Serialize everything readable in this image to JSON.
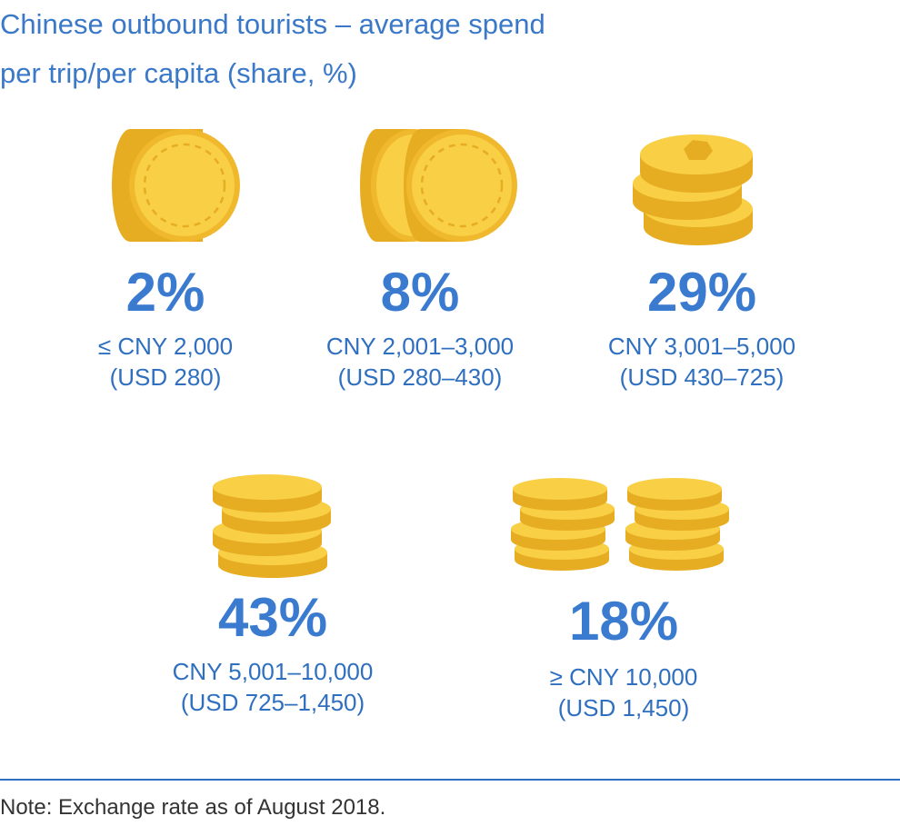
{
  "title_line1": "Chinese outbound tourists – average spend",
  "title_line2": "per trip/per capita (share, %)",
  "chart_data": {
    "type": "infographic",
    "title": "Chinese outbound tourists – average spend per trip/per capita (share, %)",
    "unit": "%",
    "items": [
      {
        "value": 2,
        "value_label": "2%",
        "range": "≤ CNY 2,000",
        "usd": "(USD 280)",
        "icon": "single-coin-icon"
      },
      {
        "value": 8,
        "value_label": "8%",
        "range": "CNY 2,001–3,000",
        "usd": "(USD 280–430)",
        "icon": "two-coins-icon"
      },
      {
        "value": 29,
        "value_label": "29%",
        "range": "CNY 3,001–5,000",
        "usd": "(USD 430–725)",
        "icon": "three-coin-stack-icon"
      },
      {
        "value": 43,
        "value_label": "43%",
        "range": "CNY 5,001–10,000",
        "usd": "(USD 725–1,450)",
        "icon": "four-coin-stack-icon"
      },
      {
        "value": 18,
        "value_label": "18%",
        "range": "≥ CNY 10,000",
        "usd": "(USD 1,450)",
        "icon": "two-coin-stacks-icon"
      }
    ]
  },
  "colors": {
    "title": "#3a78c8",
    "value": "#3a7bd0",
    "label": "#2f6fbf",
    "coin_face": "#f8cf45",
    "coin_edge": "#e7ad22",
    "coin_rim": "#f0b82c"
  },
  "note": "Note: Exchange rate as of August 2018."
}
